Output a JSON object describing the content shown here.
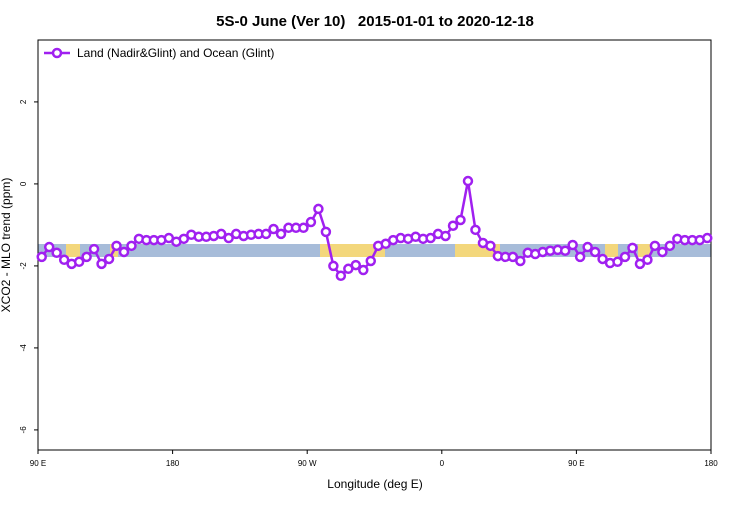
{
  "chart_data": {
    "type": "line",
    "title": "5S-0 June (Ver 10)   2015-01-01 to 2020-12-18",
    "x_label": "Longitude (deg E)",
    "y_label": "XCO2 - MLO trend (ppm)",
    "xlim": [
      90,
      540
    ],
    "xticks": [
      {
        "value": 90,
        "label": "90 E"
      },
      {
        "value": 180,
        "label": "180"
      },
      {
        "value": 270,
        "label": "90 W"
      },
      {
        "value": 360,
        "label": "0"
      },
      {
        "value": 450,
        "label": "90 E"
      },
      {
        "value": 540,
        "label": "180"
      }
    ],
    "ylim": [
      -6.49,
      3.51
    ],
    "yticks": [
      2,
      0,
      -2,
      -4,
      -6
    ],
    "legend": "top-left",
    "x": [
      92.5,
      97.5,
      102.5,
      107.5,
      112.5,
      117.5,
      122.5,
      127.5,
      132.5,
      137.5,
      142.5,
      147.5,
      152.5,
      157.5,
      162.5,
      167.5,
      172.5,
      177.5,
      182.5,
      187.5,
      192.5,
      197.5,
      202.5,
      207.5,
      212.5,
      217.5,
      222.5,
      227.5,
      232.5,
      237.5,
      242.5,
      247.5,
      252.5,
      257.5,
      262.5,
      267.5,
      272.5,
      277.5,
      282.5,
      287.5,
      292.5,
      297.5,
      302.5,
      307.5,
      312.5,
      317.5,
      322.5,
      327.5,
      332.5,
      337.5,
      342.5,
      347.5,
      352.5,
      357.5,
      362.5,
      367.5,
      372.5,
      377.5,
      382.5,
      387.5,
      392.5,
      397.5,
      402.5,
      407.5,
      412.5,
      417.5,
      422.5,
      427.5,
      432.5,
      437.5,
      442.5,
      447.5,
      452.5,
      457.5,
      462.5,
      467.5,
      472.5,
      477.5,
      482.5,
      487.5,
      492.5,
      497.5,
      502.5,
      507.5,
      512.5,
      517.5,
      522.5,
      527.5,
      532.5,
      537.5
    ],
    "series": [
      {
        "name": "Land (Nadir&Glint) and Ocean (Glint)",
        "color": "#a020f0",
        "values": [
          -1.78,
          -1.54,
          -1.68,
          -1.85,
          -1.95,
          -1.9,
          -1.78,
          -1.59,
          -1.95,
          -1.83,
          -1.51,
          -1.66,
          -1.51,
          -1.34,
          -1.37,
          -1.37,
          -1.37,
          -1.32,
          -1.41,
          -1.34,
          -1.24,
          -1.29,
          -1.29,
          -1.27,
          -1.22,
          -1.32,
          -1.22,
          -1.27,
          -1.24,
          -1.22,
          -1.22,
          -1.1,
          -1.22,
          -1.07,
          -1.07,
          -1.07,
          -0.93,
          -0.61,
          -1.17,
          -2.0,
          -2.24,
          -2.07,
          -1.98,
          -2.1,
          -1.88,
          -1.51,
          -1.46,
          -1.37,
          -1.32,
          -1.34,
          -1.29,
          -1.34,
          -1.32,
          -1.22,
          -1.27,
          -1.02,
          -0.88,
          0.07,
          -1.12,
          -1.44,
          -1.51,
          -1.76,
          -1.78,
          -1.78,
          -1.88,
          -1.68,
          -1.71,
          -1.66,
          -1.63,
          -1.61,
          -1.63,
          -1.49,
          -1.78,
          -1.54,
          -1.66,
          -1.83,
          -1.93,
          -1.9,
          -1.78,
          -1.56,
          -1.95,
          -1.85,
          -1.51,
          -1.66,
          -1.51,
          -1.34,
          -1.37,
          -1.37,
          -1.37,
          -1.32
        ]
      }
    ]
  }
}
